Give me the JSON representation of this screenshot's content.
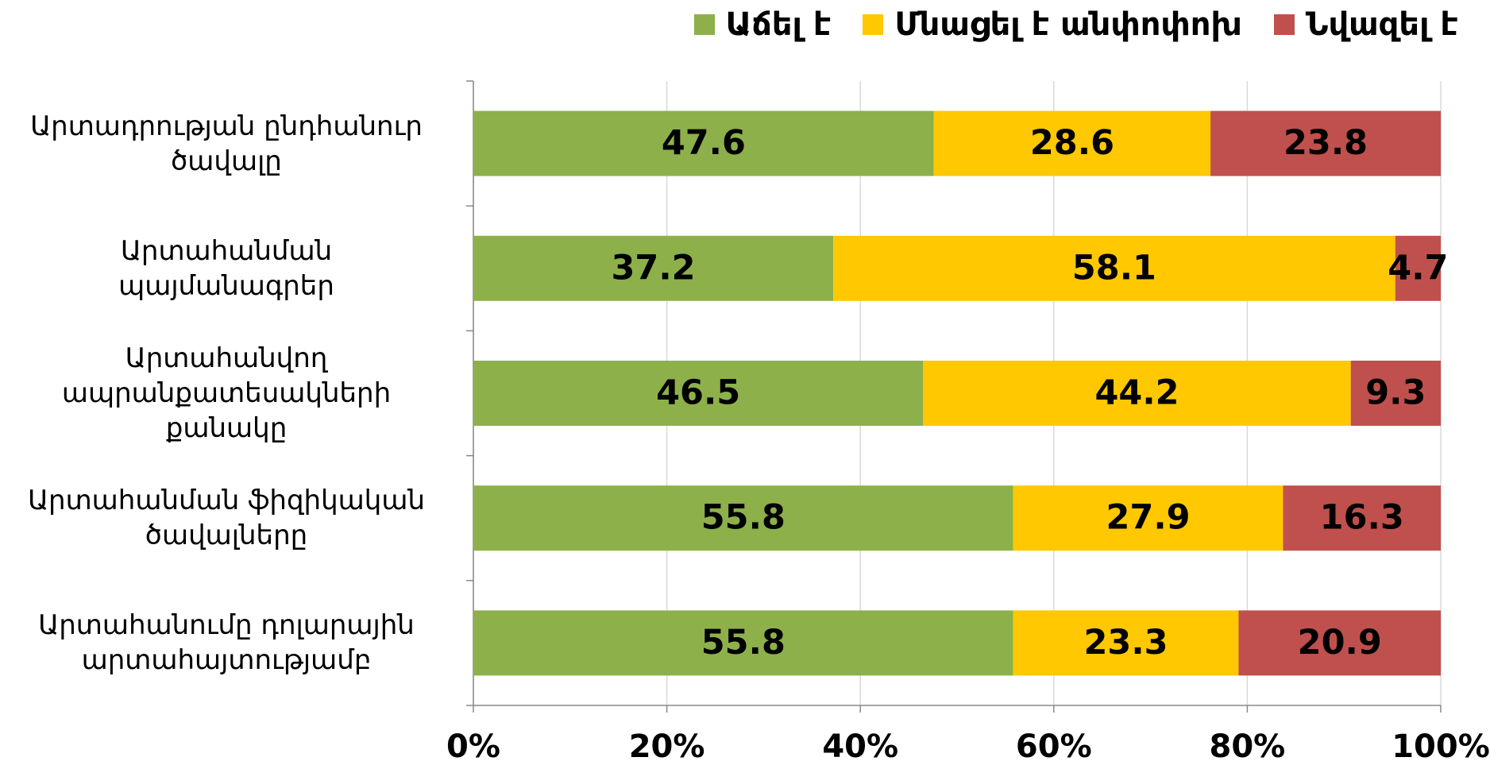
{
  "chart_data": {
    "type": "stacked-bar-horizontal",
    "categories": [
      "Արտադրության ընդհանուր ծավալը",
      "Արտահանման պայմանագրեր",
      "Արտահանվող ապրանքատեսակների քանակը",
      "Արտահանման ֆիզիկական ծավալները",
      "Արտահանումը դոլարային արտահայտությամբ"
    ],
    "series": [
      {
        "name": "Աճել է",
        "color": "#8db04a",
        "values": [
          47.6,
          37.2,
          46.5,
          55.8,
          55.8
        ]
      },
      {
        "name": "Մնացել է անփոփոխ",
        "color": "#ffc800",
        "values": [
          28.6,
          58.1,
          44.2,
          27.9,
          23.3
        ]
      },
      {
        "name": "Նվազել է",
        "color": "#c0504d",
        "values": [
          23.8,
          4.7,
          9.3,
          16.3,
          20.9
        ]
      }
    ],
    "xlim": [
      0,
      100
    ],
    "xticks": [
      {
        "value": 0,
        "label": "0%"
      },
      {
        "value": 20,
        "label": "20%"
      },
      {
        "value": 40,
        "label": "40%"
      },
      {
        "value": 60,
        "label": "60%"
      },
      {
        "value": 80,
        "label": "80%"
      },
      {
        "value": 100,
        "label": "100%"
      }
    ],
    "grid": true,
    "legend": "top-right"
  }
}
